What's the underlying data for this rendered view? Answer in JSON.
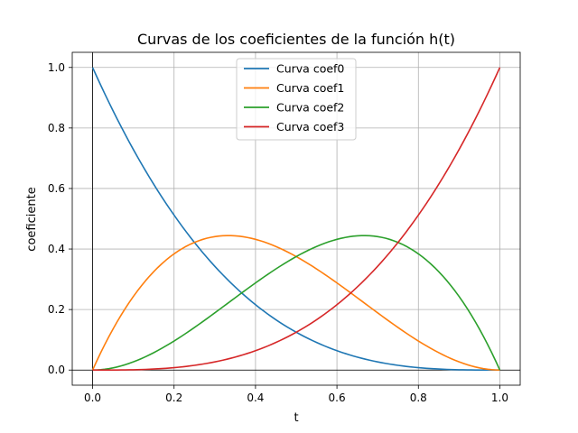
{
  "chart_data": {
    "type": "line",
    "title": "Curvas de los coeficientes de la función h(t)",
    "xlabel": "t",
    "ylabel": "coeficiente",
    "xlim": [
      -0.05,
      1.05
    ],
    "ylim": [
      -0.05,
      1.05
    ],
    "x_ticks": [
      0.0,
      0.2,
      0.4,
      0.6,
      0.8,
      1.0
    ],
    "y_ticks": [
      0.0,
      0.2,
      0.4,
      0.6,
      0.8,
      1.0
    ],
    "x_tick_labels": [
      "0.0",
      "0.2",
      "0.4",
      "0.6",
      "0.8",
      "1.0"
    ],
    "y_tick_labels": [
      "0.0",
      "0.2",
      "0.4",
      "0.6",
      "0.8",
      "1.0"
    ],
    "grid": true,
    "reference_lines": {
      "x": 0,
      "y": 0
    },
    "legend_position": "upper-center",
    "x": [
      0.0,
      0.1,
      0.2,
      0.3,
      0.4,
      0.5,
      0.6,
      0.7,
      0.8,
      0.9,
      1.0
    ],
    "series": [
      {
        "name": "Curva coef0",
        "color": "#1f77b4",
        "values": [
          1.0,
          0.729,
          0.512,
          0.343,
          0.216,
          0.125,
          0.064,
          0.027,
          0.008,
          0.001,
          0.0
        ]
      },
      {
        "name": "Curva coef1",
        "color": "#ff7f0e",
        "values": [
          0.0,
          0.243,
          0.384,
          0.441,
          0.432,
          0.375,
          0.288,
          0.189,
          0.096,
          0.027,
          0.0
        ]
      },
      {
        "name": "Curva coef2",
        "color": "#2ca02c",
        "values": [
          0.0,
          0.027,
          0.096,
          0.189,
          0.288,
          0.375,
          0.432,
          0.441,
          0.384,
          0.243,
          0.0
        ]
      },
      {
        "name": "Curva coef3",
        "color": "#d62728",
        "values": [
          0.0,
          0.001,
          0.008,
          0.027,
          0.064,
          0.125,
          0.216,
          0.343,
          0.512,
          0.729,
          1.0
        ]
      }
    ]
  }
}
